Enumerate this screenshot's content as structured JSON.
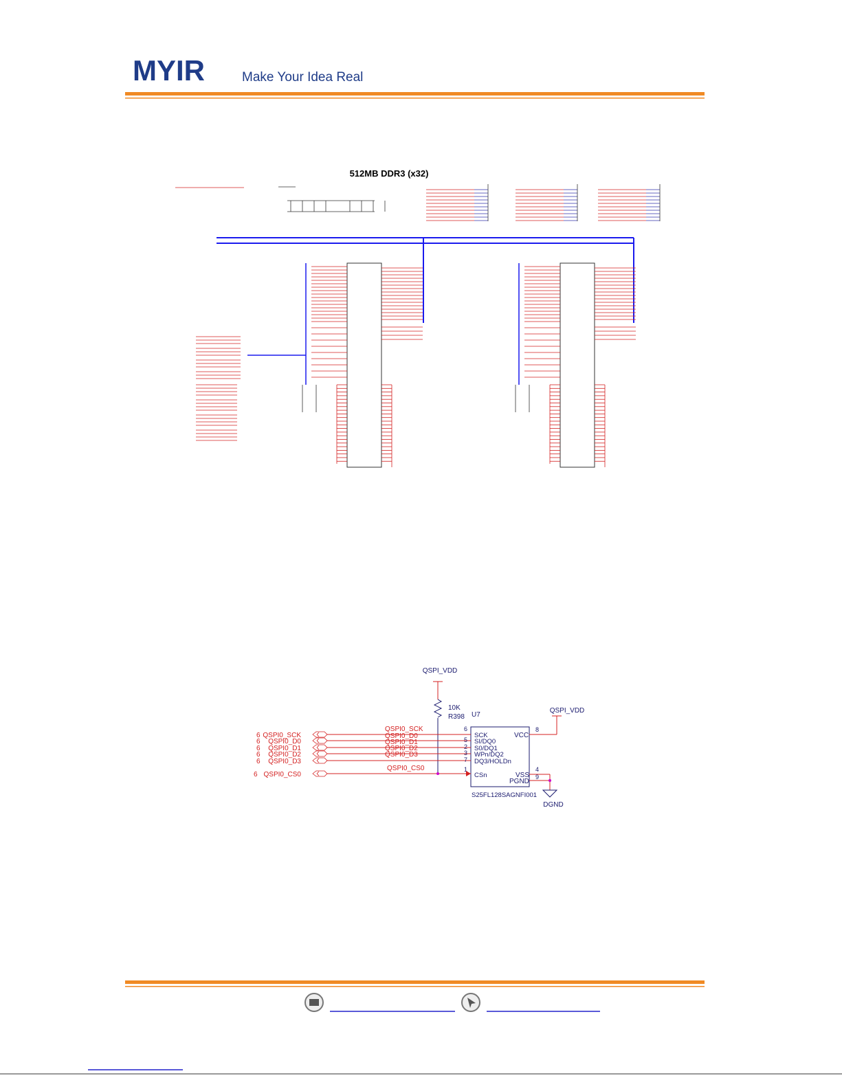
{
  "header": {
    "logo": "MYIR",
    "tagline": "Make Your Idea Real"
  },
  "ddr_schematic": {
    "title": "512MB DDR3 (x32)"
  },
  "qspi_schematic": {
    "power_top": "QSPI_VDD",
    "resistor_value": "10K",
    "resistor_ref": "R398",
    "chip_ref": "U7",
    "power_right": "QSPI_VDD",
    "signals": [
      {
        "sheet": "6",
        "port": "QSPI0_SCK",
        "net": "QSPI0_SCK",
        "pin": "6",
        "pin_name": "SCK"
      },
      {
        "sheet": "6",
        "port": "QSPI0_D0",
        "net": "QSPI0_D0",
        "pin": "5",
        "pin_name": "SI/DQ0"
      },
      {
        "sheet": "6",
        "port": "QSPI0_D1",
        "net": "QSPI0_D1",
        "pin": "2",
        "pin_name": "S0/DQ1"
      },
      {
        "sheet": "6",
        "port": "QSPI0_D2",
        "net": "QSPI0_D2",
        "pin": "3",
        "pin_name": "WPn/DQ2"
      },
      {
        "sheet": "6",
        "port": "QSPI0_D3",
        "net": "QSPI0_D3",
        "pin": "7",
        "pin_name": "DQ3/HOLDn"
      },
      {
        "sheet": "6",
        "port": "QSPI0_CS0",
        "net": "QSPI0_CS0",
        "pin": "1",
        "pin_name": "CSn"
      }
    ],
    "vcc_pin": "8",
    "vcc_name": "VCC",
    "vss_pin": "4",
    "vss_name": "VSS",
    "pgnd_pin": "9",
    "pgnd_name": "PGND",
    "part_number": "S25FL128SAGNFI001",
    "ground": "DGND"
  }
}
